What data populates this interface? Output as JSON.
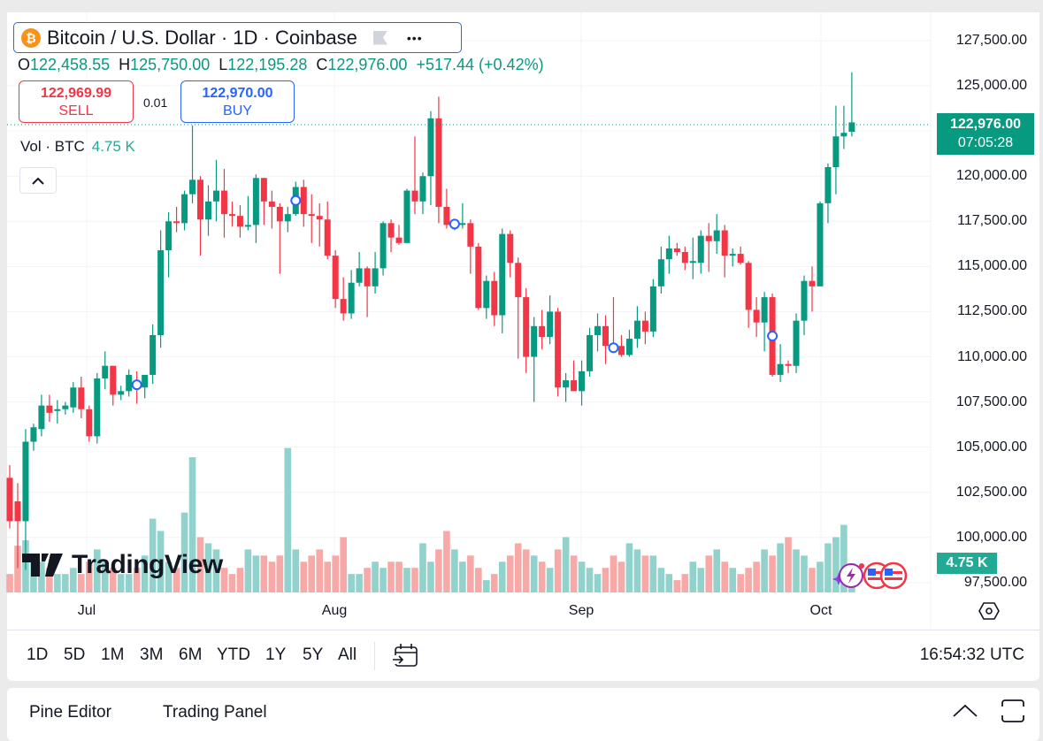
{
  "header": {
    "symbol_title": "Bitcoin / U.S. Dollar · 1D · Coinbase",
    "logo_glyph": "₿",
    "more_icon": "•••"
  },
  "ohlc": {
    "o_label": "O",
    "o": "122,458.55",
    "h_label": "H",
    "h": "125,750.00",
    "l_label": "L",
    "l": "122,195.28",
    "c_label": "C",
    "c": "122,976.00",
    "change": "+517.44 (+0.42%)"
  },
  "trade": {
    "sell_price": "122,969.99",
    "sell_label": "SELL",
    "spread": "0.01",
    "buy_price": "122,970.00",
    "buy_label": "BUY"
  },
  "volume_legend": {
    "label": "Vol · BTC",
    "value": "4.75 K"
  },
  "price_axis": {
    "ticks": [
      "127,500.00",
      "125,000.00",
      "120,000.00",
      "117,500.00",
      "115,000.00",
      "112,500.00",
      "110,000.00",
      "107,500.00",
      "105,000.00",
      "102,500.00",
      "100,000.00",
      "97,500.00"
    ],
    "last_price": "122,976.00",
    "countdown": "07:05:28",
    "volume_label": "4.75 K"
  },
  "time_axis": {
    "ticks": [
      "Jul",
      "Aug",
      "Sep",
      "Oct"
    ]
  },
  "toolbar": {
    "ranges": [
      "1D",
      "5D",
      "1M",
      "3M",
      "6M",
      "YTD",
      "1Y",
      "5Y",
      "All"
    ],
    "clock": "16:54:32 UTC"
  },
  "bottom_panel": {
    "tabs": [
      "Pine Editor",
      "Trading Panel"
    ]
  },
  "watermark": "TradingView",
  "colors": {
    "up": "#089981",
    "down": "#f23645",
    "vol_up": "#92d2cc",
    "vol_down": "#f7a9a7",
    "accent": "#2962ff"
  },
  "chart_data": {
    "type": "candlestick",
    "title": "Bitcoin / U.S. Dollar · 1D · Coinbase",
    "x_ticks": [
      "Jul",
      "Aug",
      "Sep",
      "Oct"
    ],
    "ylim": [
      97500,
      127500
    ],
    "y_ticks": [
      97500,
      100000,
      102500,
      105000,
      107500,
      110000,
      112500,
      115000,
      117500,
      120000,
      122500,
      125000,
      127500
    ],
    "last_price": 122976,
    "marker_indices": [
      16,
      36,
      56,
      76,
      96
    ],
    "candles_ohlc": [
      [
        103300,
        104000,
        100500,
        100900
      ],
      [
        102000,
        103000,
        98300,
        100900
      ],
      [
        100900,
        106000,
        98200,
        105300
      ],
      [
        105300,
        106300,
        104800,
        106100
      ],
      [
        106000,
        107900,
        105600,
        107300
      ],
      [
        107300,
        107900,
        106400,
        106900
      ],
      [
        107000,
        107600,
        106300,
        107100
      ],
      [
        107100,
        107500,
        106800,
        107300
      ],
      [
        107200,
        108600,
        106900,
        108300
      ],
      [
        108300,
        108900,
        106600,
        107100
      ],
      [
        107100,
        107300,
        105300,
        105600
      ],
      [
        105600,
        109100,
        105200,
        108800
      ],
      [
        108800,
        110300,
        108200,
        109500
      ],
      [
        109500,
        109500,
        107300,
        107900
      ],
      [
        107900,
        108400,
        107600,
        108100
      ],
      [
        108100,
        109300,
        107800,
        109000
      ],
      [
        108600,
        109200,
        107400,
        108300
      ],
      [
        108300,
        109000,
        107700,
        109000
      ],
      [
        109000,
        111800,
        108500,
        111200
      ],
      [
        111200,
        117000,
        110500,
        115900
      ],
      [
        115900,
        118000,
        114400,
        117500
      ],
      [
        117500,
        118300,
        116900,
        117400
      ],
      [
        117400,
        119200,
        117000,
        119000
      ],
      [
        119000,
        122800,
        118500,
        119800
      ],
      [
        119800,
        120000,
        115600,
        117600
      ],
      [
        117600,
        119500,
        116700,
        118600
      ],
      [
        118600,
        120900,
        117500,
        119200
      ],
      [
        119200,
        120400,
        116600,
        117900
      ],
      [
        117900,
        118600,
        117200,
        117800
      ],
      [
        117800,
        118400,
        116600,
        117200
      ],
      [
        117200,
        118900,
        117000,
        117300
      ],
      [
        117300,
        120100,
        116300,
        119900
      ],
      [
        119900,
        119900,
        117300,
        118600
      ],
      [
        118600,
        119200,
        117100,
        118300
      ],
      [
        118300,
        118500,
        114600,
        117500
      ],
      [
        117500,
        118300,
        116900,
        117900
      ],
      [
        117900,
        119700,
        117800,
        119400
      ],
      [
        119400,
        119800,
        117200,
        117900
      ],
      [
        117900,
        119000,
        116300,
        117800
      ],
      [
        117800,
        118500,
        116100,
        117600
      ],
      [
        117600,
        118600,
        115400,
        115600
      ],
      [
        115600,
        115900,
        112700,
        113200
      ],
      [
        113200,
        114400,
        112000,
        112400
      ],
      [
        112400,
        114800,
        112100,
        114100
      ],
      [
        114100,
        115800,
        113900,
        114900
      ],
      [
        114900,
        115000,
        112200,
        113900
      ],
      [
        113900,
        115800,
        113500,
        114900
      ],
      [
        114900,
        117500,
        114500,
        117400
      ],
      [
        117400,
        117600,
        115800,
        116600
      ],
      [
        116600,
        117300,
        116200,
        116300
      ],
      [
        116300,
        119300,
        116300,
        119200
      ],
      [
        119200,
        122200,
        117900,
        118600
      ],
      [
        118600,
        120200,
        117900,
        120000
      ],
      [
        120000,
        123600,
        118400,
        123200
      ],
      [
        123200,
        124400,
        117400,
        118300
      ],
      [
        118300,
        119300,
        117100,
        117300
      ],
      [
        117300,
        117600,
        117000,
        117400
      ],
      [
        117300,
        118500,
        117100,
        117400
      ],
      [
        117400,
        117600,
        114600,
        116100
      ],
      [
        116100,
        116300,
        112600,
        112700
      ],
      [
        112700,
        114500,
        112100,
        114200
      ],
      [
        114200,
        114700,
        111700,
        112300
      ],
      [
        112300,
        117100,
        111300,
        116800
      ],
      [
        116800,
        117000,
        114400,
        115200
      ],
      [
        115200,
        115500,
        109900,
        113300
      ],
      [
        113300,
        113800,
        109100,
        110000
      ],
      [
        110000,
        112200,
        107500,
        111700
      ],
      [
        111700,
        112600,
        110400,
        111100
      ],
      [
        111100,
        113400,
        110700,
        112500
      ],
      [
        112500,
        112700,
        107800,
        108300
      ],
      [
        108300,
        109100,
        107500,
        108700
      ],
      [
        108700,
        109800,
        108200,
        108100
      ],
      [
        108100,
        109800,
        107300,
        109200
      ],
      [
        109200,
        111600,
        108900,
        111200
      ],
      [
        111200,
        112400,
        110300,
        111700
      ],
      [
        111700,
        112300,
        109600,
        110600
      ],
      [
        110600,
        113300,
        110400,
        110400
      ],
      [
        110600,
        111200,
        110000,
        110100
      ],
      [
        110100,
        111500,
        110000,
        111000
      ],
      [
        111000,
        112800,
        110500,
        112000
      ],
      [
        112000,
        112500,
        110700,
        111400
      ],
      [
        111400,
        114300,
        111100,
        113900
      ],
      [
        113900,
        116100,
        113500,
        115400
      ],
      [
        115400,
        116700,
        114600,
        116000
      ],
      [
        116000,
        116300,
        115600,
        115800
      ],
      [
        115800,
        116100,
        114800,
        115200
      ],
      [
        115200,
        116600,
        114300,
        115300
      ],
      [
        115200,
        117000,
        114600,
        116700
      ],
      [
        116700,
        117400,
        114700,
        116400
      ],
      [
        116400,
        117900,
        115700,
        117000
      ],
      [
        117000,
        117300,
        114400,
        115600
      ],
      [
        115600,
        116000,
        115000,
        115700
      ],
      [
        115700,
        116100,
        115100,
        115200
      ],
      [
        115200,
        115300,
        111600,
        112600
      ],
      [
        112600,
        113300,
        111100,
        111900
      ],
      [
        111900,
        113600,
        110300,
        113300
      ],
      [
        113300,
        113500,
        108900,
        109000
      ],
      [
        109000,
        110700,
        108600,
        109600
      ],
      [
        109600,
        109800,
        109100,
        109500
      ],
      [
        109500,
        112400,
        109100,
        112000
      ],
      [
        112000,
        114500,
        111200,
        114200
      ],
      [
        114200,
        115000,
        112500,
        113900
      ],
      [
        113900,
        118600,
        113900,
        118500
      ],
      [
        118500,
        120700,
        117400,
        120500
      ],
      [
        120500,
        123900,
        119000,
        122200
      ],
      [
        122200,
        123900,
        121500,
        122400
      ],
      [
        122458.55,
        125750,
        122195.28,
        122976
      ]
    ],
    "volumes_k": [
      3.0,
      7.6,
      8.5,
      6,
      5,
      4,
      3,
      3,
      4,
      3,
      5,
      7,
      5,
      4,
      3,
      3,
      4,
      6,
      12,
      10,
      5,
      4,
      13,
      22,
      9,
      8,
      7,
      4,
      3,
      4,
      7,
      6,
      6,
      5,
      6,
      23.5,
      7,
      5,
      6,
      7,
      5,
      6,
      9,
      3,
      3,
      4,
      5,
      4,
      5,
      5,
      4,
      4,
      8,
      5,
      7,
      10,
      7,
      5,
      6,
      4,
      2,
      3,
      5,
      6,
      8,
      7,
      6,
      5,
      4,
      7,
      9,
      6,
      5,
      4,
      3,
      4,
      6,
      5,
      8,
      7,
      6,
      6,
      4,
      3,
      2,
      3,
      5,
      4,
      6,
      7,
      5,
      4,
      3,
      4,
      5,
      7,
      6,
      8,
      9,
      7,
      6,
      4,
      5,
      8,
      9,
      11,
      4.75
    ]
  }
}
